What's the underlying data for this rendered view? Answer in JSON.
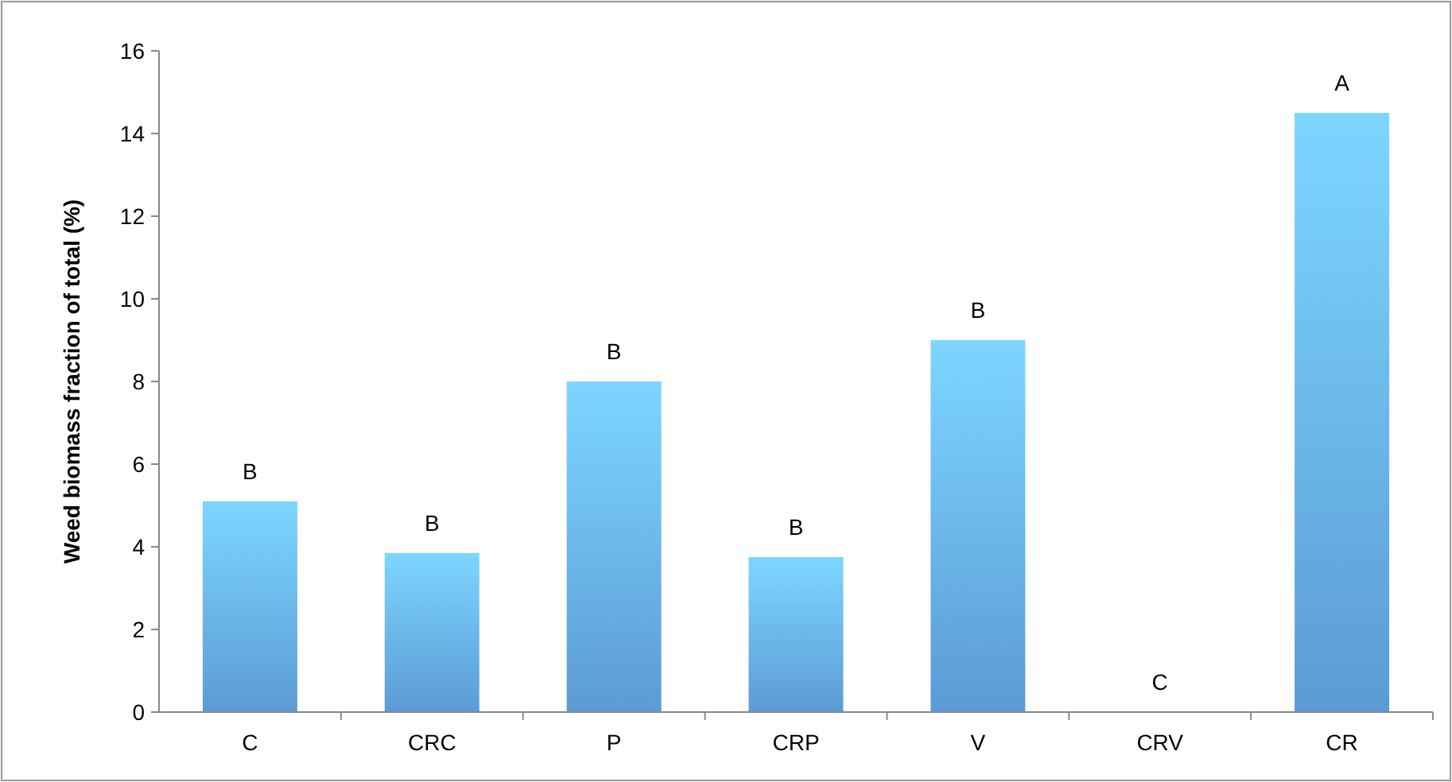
{
  "chart_data": {
    "type": "bar",
    "ylabel": "Weed biomass fraction of total (%)",
    "categories": [
      "C",
      "CRC",
      "P",
      "CRP",
      "V",
      "CRV",
      "CR"
    ],
    "values": [
      5.1,
      3.85,
      8.0,
      3.75,
      9.0,
      0,
      14.5
    ],
    "color": "#5b9bd5",
    "ylim": [
      0,
      16
    ],
    "yticks": [
      0,
      2,
      4,
      6,
      8,
      10,
      12,
      14,
      16
    ],
    "grid": false,
    "annotations": [
      {
        "text": "B",
        "x": "C",
        "y": 5.1
      },
      {
        "text": "B",
        "x": "CRC",
        "y": 3.85
      },
      {
        "text": "B",
        "x": "P",
        "y": 8.0
      },
      {
        "text": "B",
        "x": "CRP",
        "y": 3.75
      },
      {
        "text": "B",
        "x": "V",
        "y": 9.0
      },
      {
        "text": "C",
        "x": "CRV",
        "y": 0
      },
      {
        "text": "A",
        "x": "CR",
        "y": 14.5
      }
    ]
  }
}
